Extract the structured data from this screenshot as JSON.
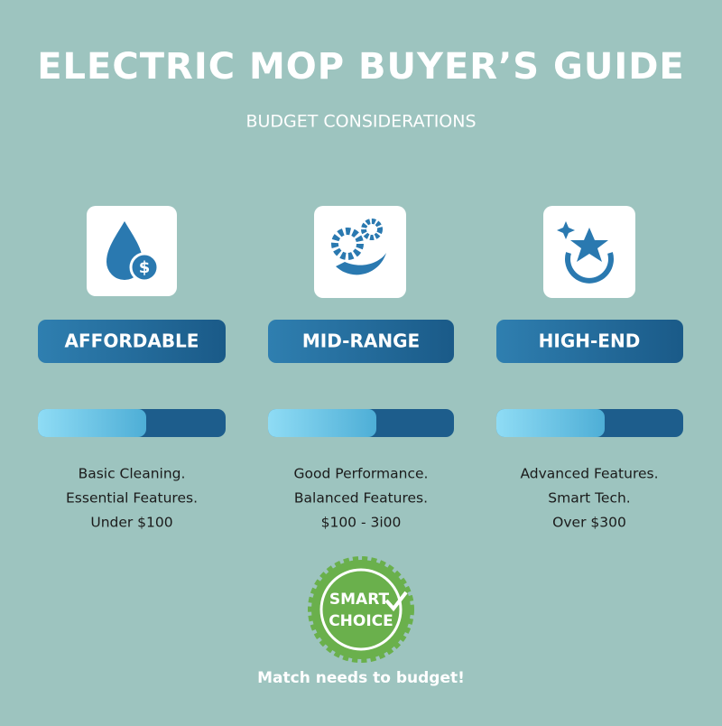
{
  "title": "ELECTRIC MOP BUYER’S GUIDE",
  "subtitle": "BUDGET CONSIDERATIONS",
  "tiers": [
    {
      "label": "AFFORDABLE",
      "lines": [
        "Basic Cleaning.",
        "Essential Features.",
        "Under $100"
      ]
    },
    {
      "label": "MID-RANGE",
      "lines": [
        "Good Performance.",
        "Balanced Features.",
        "$100 - 3i00"
      ]
    },
    {
      "label": "HIGH-END",
      "lines": [
        "Advanced Features.",
        "Smart Tech.",
        "Over $300"
      ]
    }
  ],
  "badge": {
    "lines": [
      "SMART",
      "CHOICE"
    ]
  },
  "footer": "Match needs to budget!"
}
